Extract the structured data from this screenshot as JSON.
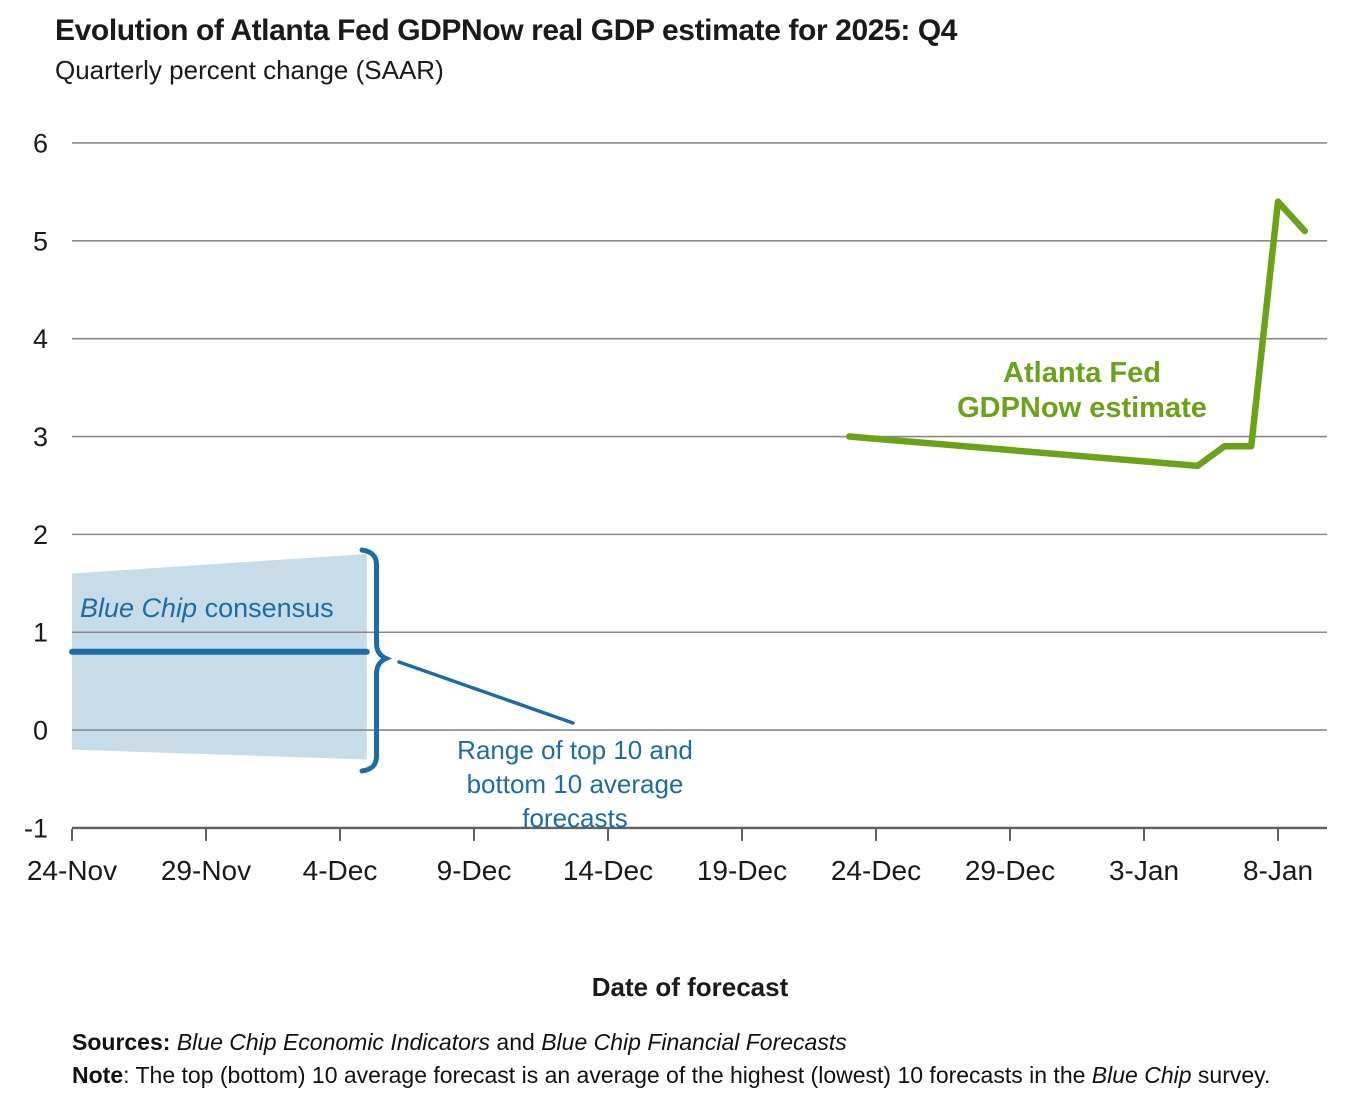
{
  "chart_data": {
    "type": "line",
    "title": "Evolution of Atlanta Fed GDPNow real GDP estimate for 2025: Q4",
    "subtitle": "Quarterly percent change (SAAR)",
    "xlabel": "Date of forecast",
    "ylabel": "",
    "ylim": [
      -1,
      6
    ],
    "grid": "horizontal",
    "legend": "none (inline annotations)",
    "yticks": [
      {
        "label": "6",
        "value": 6
      },
      {
        "label": "5",
        "value": 5
      },
      {
        "label": "4",
        "value": 4
      },
      {
        "label": "3",
        "value": 3
      },
      {
        "label": "2",
        "value": 2
      },
      {
        "label": "1",
        "value": 1
      },
      {
        "label": "0",
        "value": 0
      },
      {
        "label": "-1",
        "value": -1
      }
    ],
    "xticks": [
      {
        "label": "24-Nov",
        "day": 0
      },
      {
        "label": "29-Nov",
        "day": 5
      },
      {
        "label": "4-Dec",
        "day": 10
      },
      {
        "label": "9-Dec",
        "day": 15
      },
      {
        "label": "14-Dec",
        "day": 20
      },
      {
        "label": "19-Dec",
        "day": 25
      },
      {
        "label": "24-Dec",
        "day": 30
      },
      {
        "label": "29-Dec",
        "day": 35
      },
      {
        "label": "3-Jan",
        "day": 40
      },
      {
        "label": "8-Jan",
        "day": 45
      }
    ],
    "series": [
      {
        "name": "Atlanta Fed GDPNow estimate",
        "color": "#6aa219",
        "points": [
          {
            "date": "23-Dec",
            "day": 29,
            "value": 3.0
          },
          {
            "date": "5-Jan",
            "day": 42,
            "value": 2.7
          },
          {
            "date": "6-Jan",
            "day": 43,
            "value": 2.9
          },
          {
            "date": "7-Jan",
            "day": 44,
            "value": 2.9
          },
          {
            "date": "8-Jan",
            "day": 45,
            "value": 5.4
          },
          {
            "date": "9-Jan",
            "day": 46,
            "value": 5.1
          }
        ]
      },
      {
        "name": "Blue Chip consensus",
        "color": "#1b6ca7",
        "points": [
          {
            "date": "24-Nov",
            "day": 0,
            "value": 0.8
          },
          {
            "date": "5-Dec",
            "day": 11,
            "value": 0.8
          }
        ]
      }
    ],
    "range_band": {
      "name": "Range of top 10 and bottom 10 average forecasts",
      "fill": "#c7dce9",
      "top10": [
        {
          "day": 0,
          "value": 1.6
        },
        {
          "day": 11,
          "value": 1.8
        }
      ],
      "bottom10": [
        {
          "day": 0,
          "value": -0.2
        },
        {
          "day": 11,
          "value": -0.3
        }
      ]
    },
    "annotations": {
      "atlanta": {
        "line1": "Atlanta Fed",
        "line2": "GDPNow estimate"
      },
      "bluechip": {
        "italic": "Blue Chip",
        "rest": " consensus"
      },
      "range": {
        "line1": "Range of top 10 and",
        "line2": "bottom 10 average",
        "line3": "forecasts"
      }
    }
  },
  "footer": {
    "sources_label": "Sources:",
    "source1": " Blue Chip Economic Indicators",
    "sources_and": " and ",
    "source2": "Blue Chip Financial Forecasts",
    "note_label": "Note",
    "note_text": ": The top (bottom) 10 average forecast is an average of the highest (lowest) 10 forecasts in the ",
    "note_italic": "Blue Chip",
    "note_end": " survey."
  },
  "colors": {
    "gdpnow_green": "#6aa219",
    "bluechip_blue": "#1b6ca7",
    "band_fill": "#c7dce9",
    "gridline": "#8a8a8a",
    "axis": "#5f5f5f",
    "text": "#1a1a1a"
  }
}
